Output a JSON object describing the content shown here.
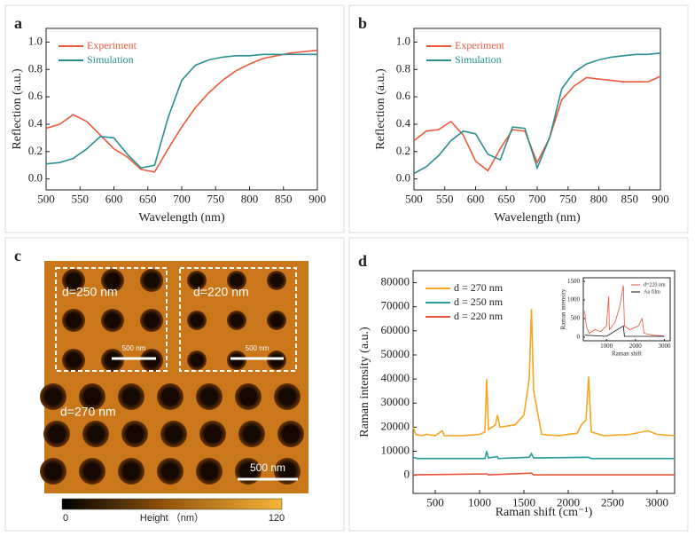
{
  "chart_data": [
    {
      "type": "line",
      "panel_label": "a",
      "xlabel": "Wavelength (nm)",
      "ylabel": "Reflection (a.u.)",
      "x": [
        500,
        520,
        540,
        560,
        580,
        600,
        620,
        640,
        660,
        680,
        700,
        720,
        740,
        760,
        780,
        800,
        820,
        840,
        860,
        880,
        900
      ],
      "series": [
        {
          "name": "Experiment",
          "color": "#f05a3c",
          "values": [
            0.37,
            0.4,
            0.47,
            0.42,
            0.32,
            0.22,
            0.16,
            0.07,
            0.05,
            0.22,
            0.38,
            0.52,
            0.63,
            0.72,
            0.79,
            0.84,
            0.88,
            0.9,
            0.92,
            0.93,
            0.94
          ]
        },
        {
          "name": "Simulation",
          "color": "#2a8f8f",
          "values": [
            0.11,
            0.12,
            0.15,
            0.22,
            0.31,
            0.3,
            0.18,
            0.08,
            0.1,
            0.45,
            0.72,
            0.83,
            0.87,
            0.89,
            0.9,
            0.9,
            0.91,
            0.91,
            0.91,
            0.91,
            0.91
          ]
        }
      ],
      "xlim": [
        500,
        900
      ],
      "xticks": [
        500,
        550,
        600,
        650,
        700,
        750,
        800,
        850,
        900
      ],
      "ylim": [
        -0.08,
        1.1
      ],
      "yticks": [
        {
          "value": 0,
          "label": "0.0"
        },
        0.2,
        0.4,
        0.6,
        0.8,
        {
          "value": 1,
          "label": "1.0"
        }
      ],
      "legend": "upper left"
    },
    {
      "type": "line",
      "panel_label": "b",
      "xlabel": "Wavelength (nm)",
      "ylabel": "Reflection (a.u.)",
      "x": [
        500,
        520,
        540,
        560,
        580,
        600,
        620,
        640,
        660,
        680,
        700,
        720,
        740,
        760,
        780,
        800,
        820,
        840,
        860,
        880,
        900
      ],
      "series": [
        {
          "name": "Experiment",
          "color": "#f05a3c",
          "values": [
            0.28,
            0.35,
            0.36,
            0.42,
            0.32,
            0.13,
            0.06,
            0.22,
            0.36,
            0.35,
            0.12,
            0.3,
            0.58,
            0.68,
            0.74,
            0.73,
            0.72,
            0.71,
            0.71,
            0.71,
            0.75
          ]
        },
        {
          "name": "Simulation",
          "color": "#2a8f8f",
          "values": [
            0.04,
            0.09,
            0.17,
            0.28,
            0.35,
            0.33,
            0.18,
            0.14,
            0.38,
            0.37,
            0.08,
            0.3,
            0.66,
            0.78,
            0.84,
            0.87,
            0.89,
            0.9,
            0.91,
            0.91,
            0.92
          ]
        }
      ],
      "xlim": [
        500,
        900
      ],
      "xticks": [
        500,
        550,
        600,
        650,
        700,
        750,
        800,
        850,
        900
      ],
      "ylim": [
        -0.08,
        1.1
      ],
      "yticks": [
        {
          "value": 0,
          "label": "0.0"
        },
        0.2,
        0.4,
        0.6,
        0.8,
        {
          "value": 1,
          "label": "1.0"
        }
      ],
      "legend": "upper left"
    },
    {
      "type": "line",
      "panel_label": "d",
      "xlabel": "Raman shift (cm⁻¹)",
      "ylabel": "Raman intensity (a.u.)",
      "series": [
        {
          "name": "d = 270 nm",
          "color": "#f5a623",
          "x": [
            250,
            280,
            350,
            400,
            500,
            580,
            600,
            800,
            1000,
            1060,
            1080,
            1100,
            1180,
            1200,
            1230,
            1400,
            1500,
            1560,
            1585,
            1610,
            1700,
            1900,
            2100,
            2150,
            2200,
            2230,
            2260,
            2400,
            2700,
            2900,
            3000,
            3200
          ],
          "values": [
            20000,
            17000,
            16500,
            17000,
            16500,
            18500,
            16500,
            16500,
            17000,
            18000,
            40000,
            19000,
            21000,
            25000,
            20000,
            21000,
            25000,
            40000,
            69000,
            35000,
            17000,
            16500,
            17500,
            21000,
            23000,
            41000,
            18000,
            16500,
            17000,
            18500,
            17000,
            16500
          ]
        },
        {
          "name": "d = 250 nm",
          "color": "#2a9d9d",
          "x": [
            250,
            300,
            1060,
            1080,
            1100,
            1200,
            1210,
            1560,
            1585,
            1610,
            2230,
            2260,
            3200
          ],
          "values": [
            7500,
            7000,
            7000,
            10000,
            7200,
            7800,
            7000,
            7500,
            9000,
            7200,
            7500,
            7000,
            7000
          ]
        },
        {
          "name": "d = 220 nm",
          "color": "#e8533a",
          "x": [
            250,
            1080,
            1100,
            1585,
            1610,
            3200
          ],
          "values": [
            200,
            600,
            200,
            900,
            200,
            200
          ]
        }
      ],
      "xlim": [
        250,
        3200
      ],
      "xticks": [
        500,
        1000,
        1500,
        2000,
        2500,
        3000
      ],
      "ylim": [
        -7500,
        85000
      ],
      "yticks": [
        0,
        10000,
        20000,
        30000,
        40000,
        50000,
        60000,
        70000,
        80000
      ],
      "legend": "upper left"
    },
    {
      "type": "line",
      "xlabel": "Raman shift",
      "ylabel": "Raman intensity",
      "series": [
        {
          "name": "d=220 nm",
          "color": "#e8533a",
          "x": [
            250,
            300,
            400,
            600,
            800,
            1000,
            1080,
            1100,
            1300,
            1450,
            1585,
            1620,
            1800,
            2100,
            2230,
            2300,
            2600,
            3000
          ],
          "values": [
            700,
            300,
            100,
            200,
            150,
            300,
            1100,
            200,
            400,
            800,
            1400,
            300,
            200,
            300,
            500,
            100,
            50,
            30
          ]
        },
        {
          "name": "Au film",
          "color": "#111111",
          "x": [
            250,
            1000,
            1585,
            1620,
            3000
          ],
          "values": [
            50,
            20,
            300,
            20,
            20
          ]
        }
      ],
      "xlim": [
        200,
        3200
      ],
      "xticks": [
        1000,
        2000,
        3000
      ],
      "ylim": [
        -100,
        1600
      ],
      "yticks": [
        0,
        500,
        1000,
        1500
      ],
      "legend": "upper right"
    }
  ],
  "afm_panel": {
    "panel_label": "c",
    "inset_labels": [
      "d=250 nm",
      "d=220 nm"
    ],
    "main_label": "d=270 nm",
    "scale_bars": [
      "500 nm",
      "500 nm",
      "500 nm"
    ],
    "colorbar": {
      "min_label": "0",
      "title": "Height （nm）",
      "max_label": "120"
    }
  }
}
